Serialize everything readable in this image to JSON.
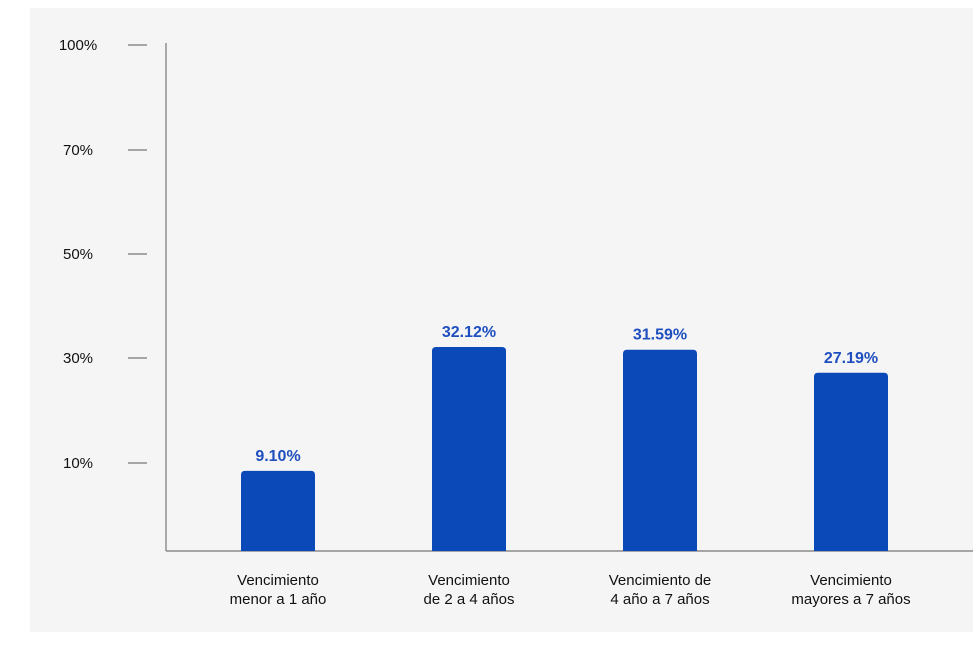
{
  "chart_data": {
    "type": "bar",
    "categories": [
      [
        "Vencimiento",
        "menor a 1 año"
      ],
      [
        "Vencimiento",
        "de 2 a 4 años"
      ],
      [
        "Vencimiento de",
        "4 año a 7 años"
      ],
      [
        "Vencimiento",
        "mayores a 7 años"
      ]
    ],
    "values": [
      9.1,
      32.12,
      31.59,
      27.19
    ],
    "data_labels": [
      "9.10%",
      "32.12%",
      "31.59%",
      "27.19%"
    ],
    "y_ticks": [
      {
        "label": "10%",
        "value": 10
      },
      {
        "label": "30%",
        "value": 30
      },
      {
        "label": "50%",
        "value": 50
      },
      {
        "label": "70%",
        "value": 70
      },
      {
        "label": "100%",
        "value": 100
      }
    ],
    "title": "",
    "xlabel": "",
    "ylabel": "",
    "ylim": [
      0,
      100
    ],
    "grid": false,
    "legend": "none"
  },
  "colors": {
    "bar": "#0b49b8",
    "label": "#1f4fbf",
    "axis": "#777777",
    "panel": "#f5f5f5"
  }
}
